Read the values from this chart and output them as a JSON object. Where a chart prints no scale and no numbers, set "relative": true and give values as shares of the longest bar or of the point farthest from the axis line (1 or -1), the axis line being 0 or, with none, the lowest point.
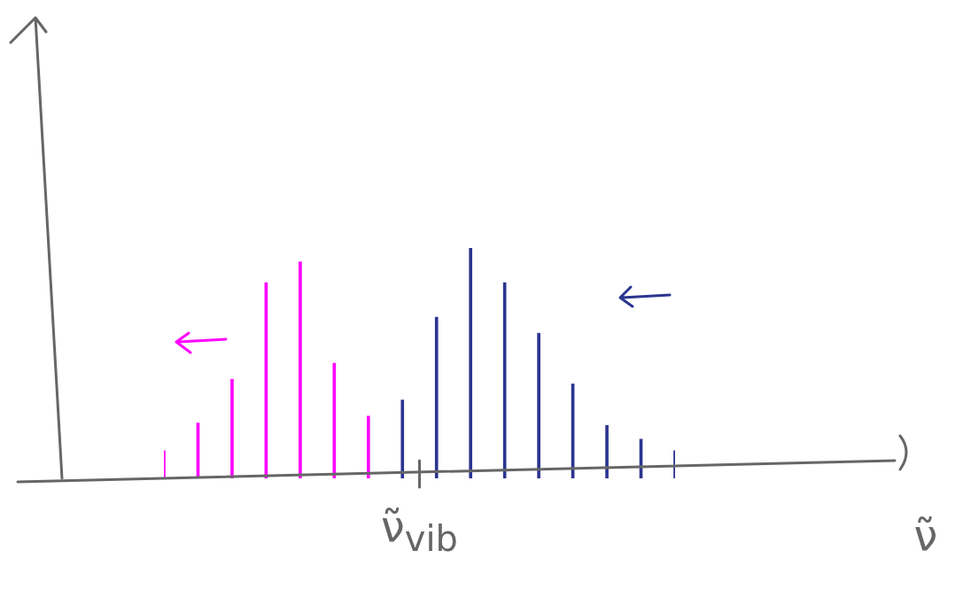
{
  "chart_data": {
    "type": "bar",
    "relative": true,
    "grid": false,
    "legend": false,
    "annotations": [
      "ν̃$_{vib}$",
      "ν̃"
    ],
    "categories": [
      null,
      null,
      null,
      null,
      null,
      null,
      null,
      null,
      null,
      null,
      null,
      null,
      null,
      null,
      null,
      null
    ],
    "values": [
      0.12,
      0.24,
      0.43,
      0.85,
      0.94,
      0.5,
      0.27,
      0.34,
      0.7,
      1,
      0.85,
      0.63,
      0.41,
      0.23,
      0.17,
      0.12
    ],
    "colors": [
      "#ff00ff",
      "#ff00ff",
      "#ff00ff",
      "#ff00ff",
      "#ff00ff",
      "#ff00ff",
      "#ff00ff",
      "#2b3590",
      "#2b3590",
      "#2b3590",
      "#2b3590",
      "#2b3590",
      "#2b3590",
      "#2b3590",
      "#2b3590",
      "#2b3590"
    ]
  }
}
